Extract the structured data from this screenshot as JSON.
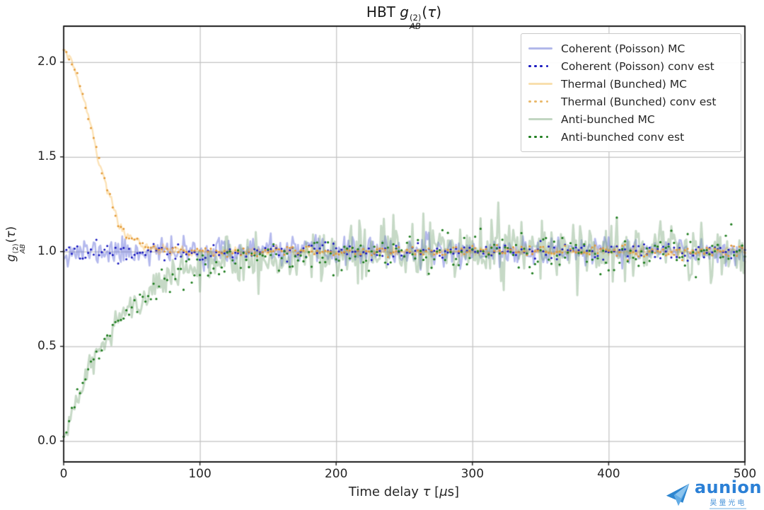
{
  "watermark": {
    "name": "aunion",
    "cn": "昊量光电"
  },
  "chart_data": {
    "type": "line",
    "title": "HBT g_AB^(2)(τ)",
    "title_parts": {
      "prefix": "HBT ",
      "symbol": "g",
      "sup": "(2)",
      "sub": "AB",
      "open": "(",
      "tau": "τ",
      "close": ")"
    },
    "ylabel": "g_AB^(2)(τ)",
    "ylabel_parts": {
      "symbol": "g",
      "sup": "(2)",
      "sub": "AB",
      "open": "(",
      "tau": "τ",
      "close": ")"
    },
    "xlabel": "Time delay τ [μs]",
    "xlabel_parts": {
      "pre": "Time delay ",
      "tau": "τ",
      "open": " [",
      "mu": "μ",
      "close": "s]"
    },
    "xlim": [
      0,
      500
    ],
    "ylim": [
      -0.11,
      2.19
    ],
    "x_ticks": [
      0,
      100,
      200,
      300,
      400,
      500
    ],
    "x_tick_labels": [
      "0",
      "100",
      "200",
      "300",
      "400",
      "500"
    ],
    "y_ticks": [
      0.0,
      0.5,
      1.0,
      1.5,
      2.0
    ],
    "y_tick_labels": [
      "0.0",
      "0.5",
      "1.0",
      "1.5",
      "2.0"
    ],
    "grid": true,
    "grid_color": "#c2c2c2",
    "frame_color": "#1a1a1a",
    "legend_position": "upper right",
    "series": [
      {
        "name": "coherent-mc",
        "label": "Coherent (Poisson) MC",
        "style": "line",
        "color": "rgba(105,115,220,0.5)",
        "legend_color": "#b2b8ea",
        "width": 2.6,
        "seed": 11,
        "sigma0": 0.036,
        "anchors": [
          [
            0,
            1.0
          ],
          [
            500,
            1.0
          ]
        ]
      },
      {
        "name": "coherent-est",
        "label": "Coherent (Poisson) conv est",
        "style": "dots",
        "color": "#1818bf",
        "legend_color": "#1818bf",
        "dot": 1.5,
        "seed": 22,
        "sigma0": 0.02,
        "anchors": [
          [
            0,
            1.0
          ],
          [
            500,
            1.0
          ]
        ]
      },
      {
        "name": "thermal-mc",
        "label": "Thermal (Bunched) MC",
        "style": "line",
        "color": "rgba(246,178,64,0.38)",
        "legend_color": "#f8dfae",
        "width": 2.4,
        "seed": 33,
        "sigma0": 0.012,
        "anchors": [
          [
            0,
            2.06
          ],
          [
            5,
            2.02
          ],
          [
            10,
            1.92
          ],
          [
            15,
            1.8
          ],
          [
            20,
            1.66
          ],
          [
            25,
            1.5
          ],
          [
            30,
            1.38
          ],
          [
            35,
            1.26
          ],
          [
            40,
            1.16
          ],
          [
            46,
            1.09
          ],
          [
            54,
            1.05
          ],
          [
            62,
            1.02
          ],
          [
            75,
            1.005
          ],
          [
            100,
            1.0
          ],
          [
            500,
            1.0
          ]
        ]
      },
      {
        "name": "thermal-est",
        "label": "Thermal (Bunched) conv est",
        "style": "dots",
        "color": "#e39a38",
        "legend_color": "#eab86a",
        "dot": 1.5,
        "seed": 44,
        "sigma0": 0.014,
        "anchors": [
          [
            0,
            2.06
          ],
          [
            5,
            2.02
          ],
          [
            10,
            1.92
          ],
          [
            15,
            1.8
          ],
          [
            20,
            1.66
          ],
          [
            25,
            1.5
          ],
          [
            30,
            1.38
          ],
          [
            35,
            1.26
          ],
          [
            40,
            1.16
          ],
          [
            46,
            1.09
          ],
          [
            54,
            1.05
          ],
          [
            62,
            1.02
          ],
          [
            75,
            1.005
          ],
          [
            100,
            1.0
          ],
          [
            500,
            1.0
          ]
        ]
      },
      {
        "name": "anti-bunched-mc",
        "label": "Anti-bunched MC",
        "style": "line",
        "color": "rgba(120,165,120,0.42)",
        "legend_color": "#c2d6c2",
        "width": 3.0,
        "seed": 55,
        "sigma0": 0.02,
        "sigma1": 0.075,
        "ramp": 100,
        "spike_p": 0.07,
        "spike_mult": 2.0,
        "anchors": [
          [
            0,
            0.0
          ],
          [
            5,
            0.12
          ],
          [
            10,
            0.22
          ],
          [
            15,
            0.31
          ],
          [
            20,
            0.4
          ],
          [
            27,
            0.5
          ],
          [
            35,
            0.58
          ],
          [
            45,
            0.67
          ],
          [
            55,
            0.74
          ],
          [
            70,
            0.82
          ],
          [
            85,
            0.88
          ],
          [
            100,
            0.92
          ],
          [
            120,
            0.95
          ],
          [
            150,
            0.97
          ],
          [
            200,
            0.99
          ],
          [
            250,
            1.0
          ],
          [
            500,
            1.0
          ]
        ]
      },
      {
        "name": "anti-bunched-est",
        "label": "Anti-bunched conv est",
        "style": "dots",
        "color": "#1e7d1e",
        "legend_color": "#1e7d1e",
        "dot": 1.6,
        "seed": 66,
        "sigma0": 0.012,
        "sigma1": 0.05,
        "ramp": 100,
        "anchors": [
          [
            0,
            0.0
          ],
          [
            5,
            0.12
          ],
          [
            10,
            0.22
          ],
          [
            15,
            0.31
          ],
          [
            20,
            0.4
          ],
          [
            27,
            0.5
          ],
          [
            35,
            0.58
          ],
          [
            45,
            0.67
          ],
          [
            55,
            0.74
          ],
          [
            70,
            0.82
          ],
          [
            85,
            0.88
          ],
          [
            100,
            0.92
          ],
          [
            120,
            0.95
          ],
          [
            150,
            0.97
          ],
          [
            200,
            0.99
          ],
          [
            250,
            1.0
          ],
          [
            500,
            1.0
          ]
        ]
      }
    ]
  }
}
